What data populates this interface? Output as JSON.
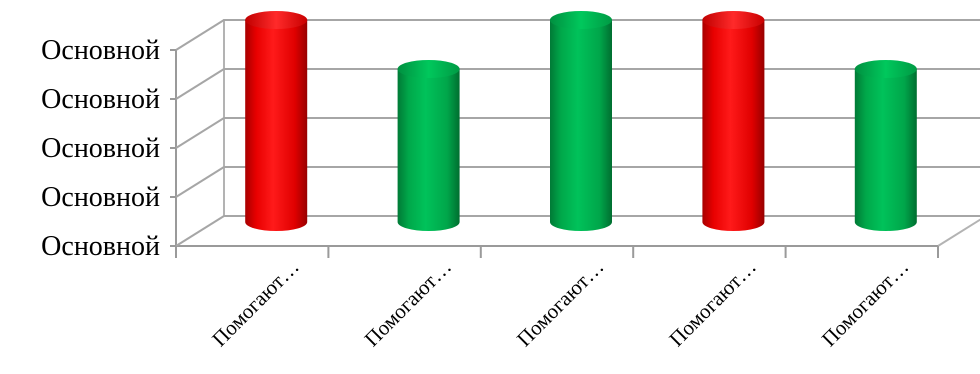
{
  "chart_data": {
    "type": "bar",
    "style": "3d-cylinder",
    "categories": [
      "Помогают…",
      "Помогают…",
      "Помогают…",
      "Помогают…",
      "Помогают…"
    ],
    "values": [
      4,
      3,
      4,
      4,
      3
    ],
    "bar_colors": [
      "#ff0000",
      "#00b050",
      "#00b050",
      "#ff0000",
      "#00b050"
    ],
    "y_tick_labels": [
      "Основной",
      "Основной",
      "Основной",
      "Основной",
      "Основной"
    ],
    "ylim": [
      0,
      4
    ],
    "grid": true,
    "legend": "none",
    "title": "",
    "xlabel": "",
    "ylabel": ""
  }
}
